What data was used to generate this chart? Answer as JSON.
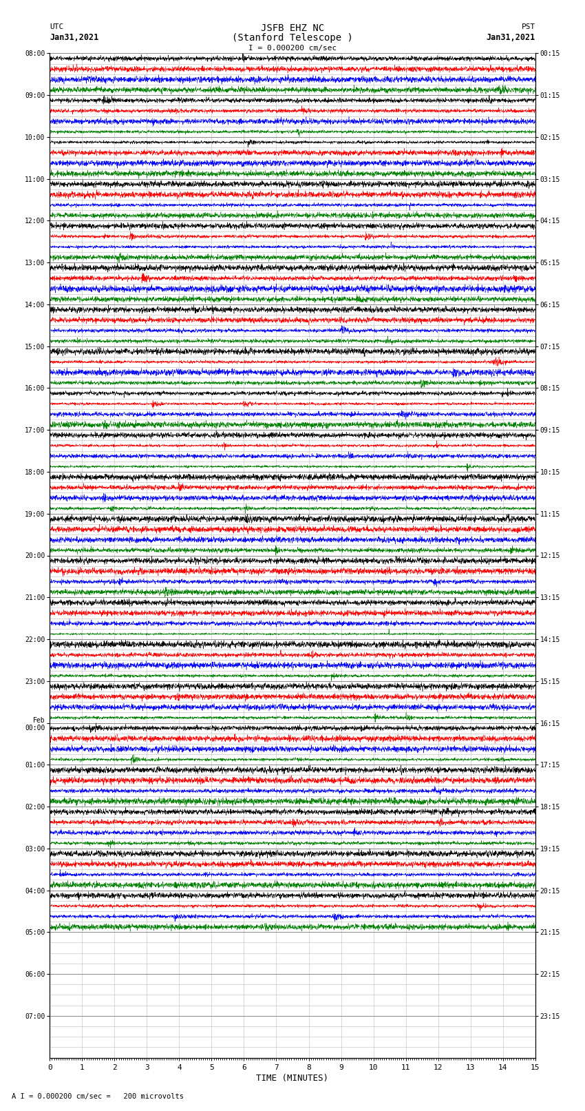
{
  "title_line1": "JSFB EHZ NC",
  "title_line2": "(Stanford Telescope )",
  "scale_text": "I = 0.000200 cm/sec",
  "footer_text": "A I = 0.000200 cm/sec =   200 microvolts",
  "utc_label": "UTC",
  "utc_date": "Jan31,2021",
  "pst_label": "PST",
  "pst_date": "Jan31,2021",
  "xlabel": "TIME (MINUTES)",
  "ylabel_left_times": [
    "08:00",
    "09:00",
    "10:00",
    "11:00",
    "12:00",
    "13:00",
    "14:00",
    "15:00",
    "16:00",
    "17:00",
    "18:00",
    "19:00",
    "20:00",
    "21:00",
    "22:00",
    "23:00",
    "Feb\n00:00",
    "01:00",
    "02:00",
    "03:00",
    "04:00",
    "05:00",
    "06:00",
    "07:00"
  ],
  "ylabel_right_times": [
    "00:15",
    "01:15",
    "02:15",
    "03:15",
    "04:15",
    "05:15",
    "06:15",
    "07:15",
    "08:15",
    "09:15",
    "10:15",
    "11:15",
    "12:15",
    "13:15",
    "14:15",
    "15:15",
    "16:15",
    "17:15",
    "18:15",
    "19:15",
    "20:15",
    "21:15",
    "22:15",
    "23:15"
  ],
  "num_rows": 24,
  "traces_per_row": 4,
  "active_rows": 21,
  "colors": [
    "black",
    "red",
    "blue",
    "green"
  ],
  "x_min": 0,
  "x_max": 15,
  "x_ticks": [
    0,
    1,
    2,
    3,
    4,
    5,
    6,
    7,
    8,
    9,
    10,
    11,
    12,
    13,
    14,
    15
  ],
  "background_color": "white",
  "major_grid_color": "#888888",
  "minor_grid_color": "#bbbbbb",
  "fig_width": 8.5,
  "fig_height": 16.13
}
